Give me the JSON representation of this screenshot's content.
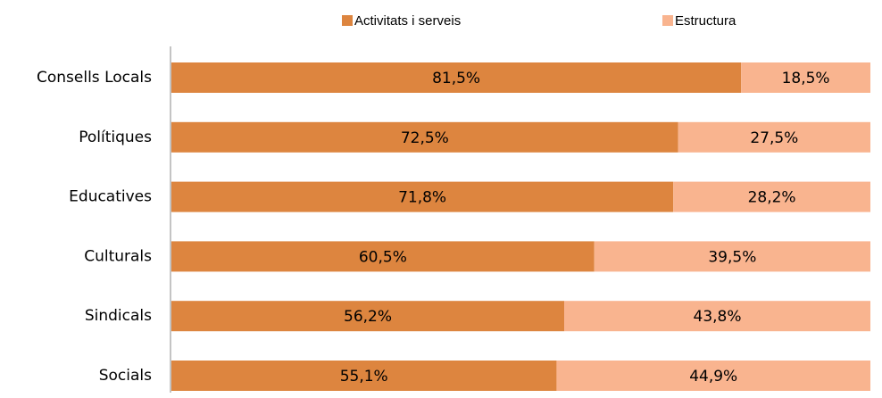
{
  "chart_data": {
    "type": "stacked-barh",
    "categories": [
      "Consells Locals",
      "Polítiques",
      "Educatives",
      "Culturals",
      "Sindicals",
      "Socials"
    ],
    "series": [
      {
        "name": "Activitats i serveis",
        "color": "#dd853f",
        "values": [
          81.5,
          72.5,
          71.8,
          60.5,
          56.2,
          55.1
        ],
        "value_labels": [
          "81,5%",
          "72,5%",
          "71,8%",
          "60,5%",
          "56,2%",
          "55,1%"
        ]
      },
      {
        "name": "Estructura",
        "color": "#f9b48f",
        "values": [
          18.5,
          27.5,
          28.2,
          39.5,
          43.8,
          44.9
        ],
        "value_labels": [
          "18,5%",
          "27,5%",
          "28,2%",
          "39,5%",
          "43,8%",
          "44,9%"
        ]
      }
    ],
    "xlim": [
      0,
      100
    ],
    "legend": "top"
  }
}
